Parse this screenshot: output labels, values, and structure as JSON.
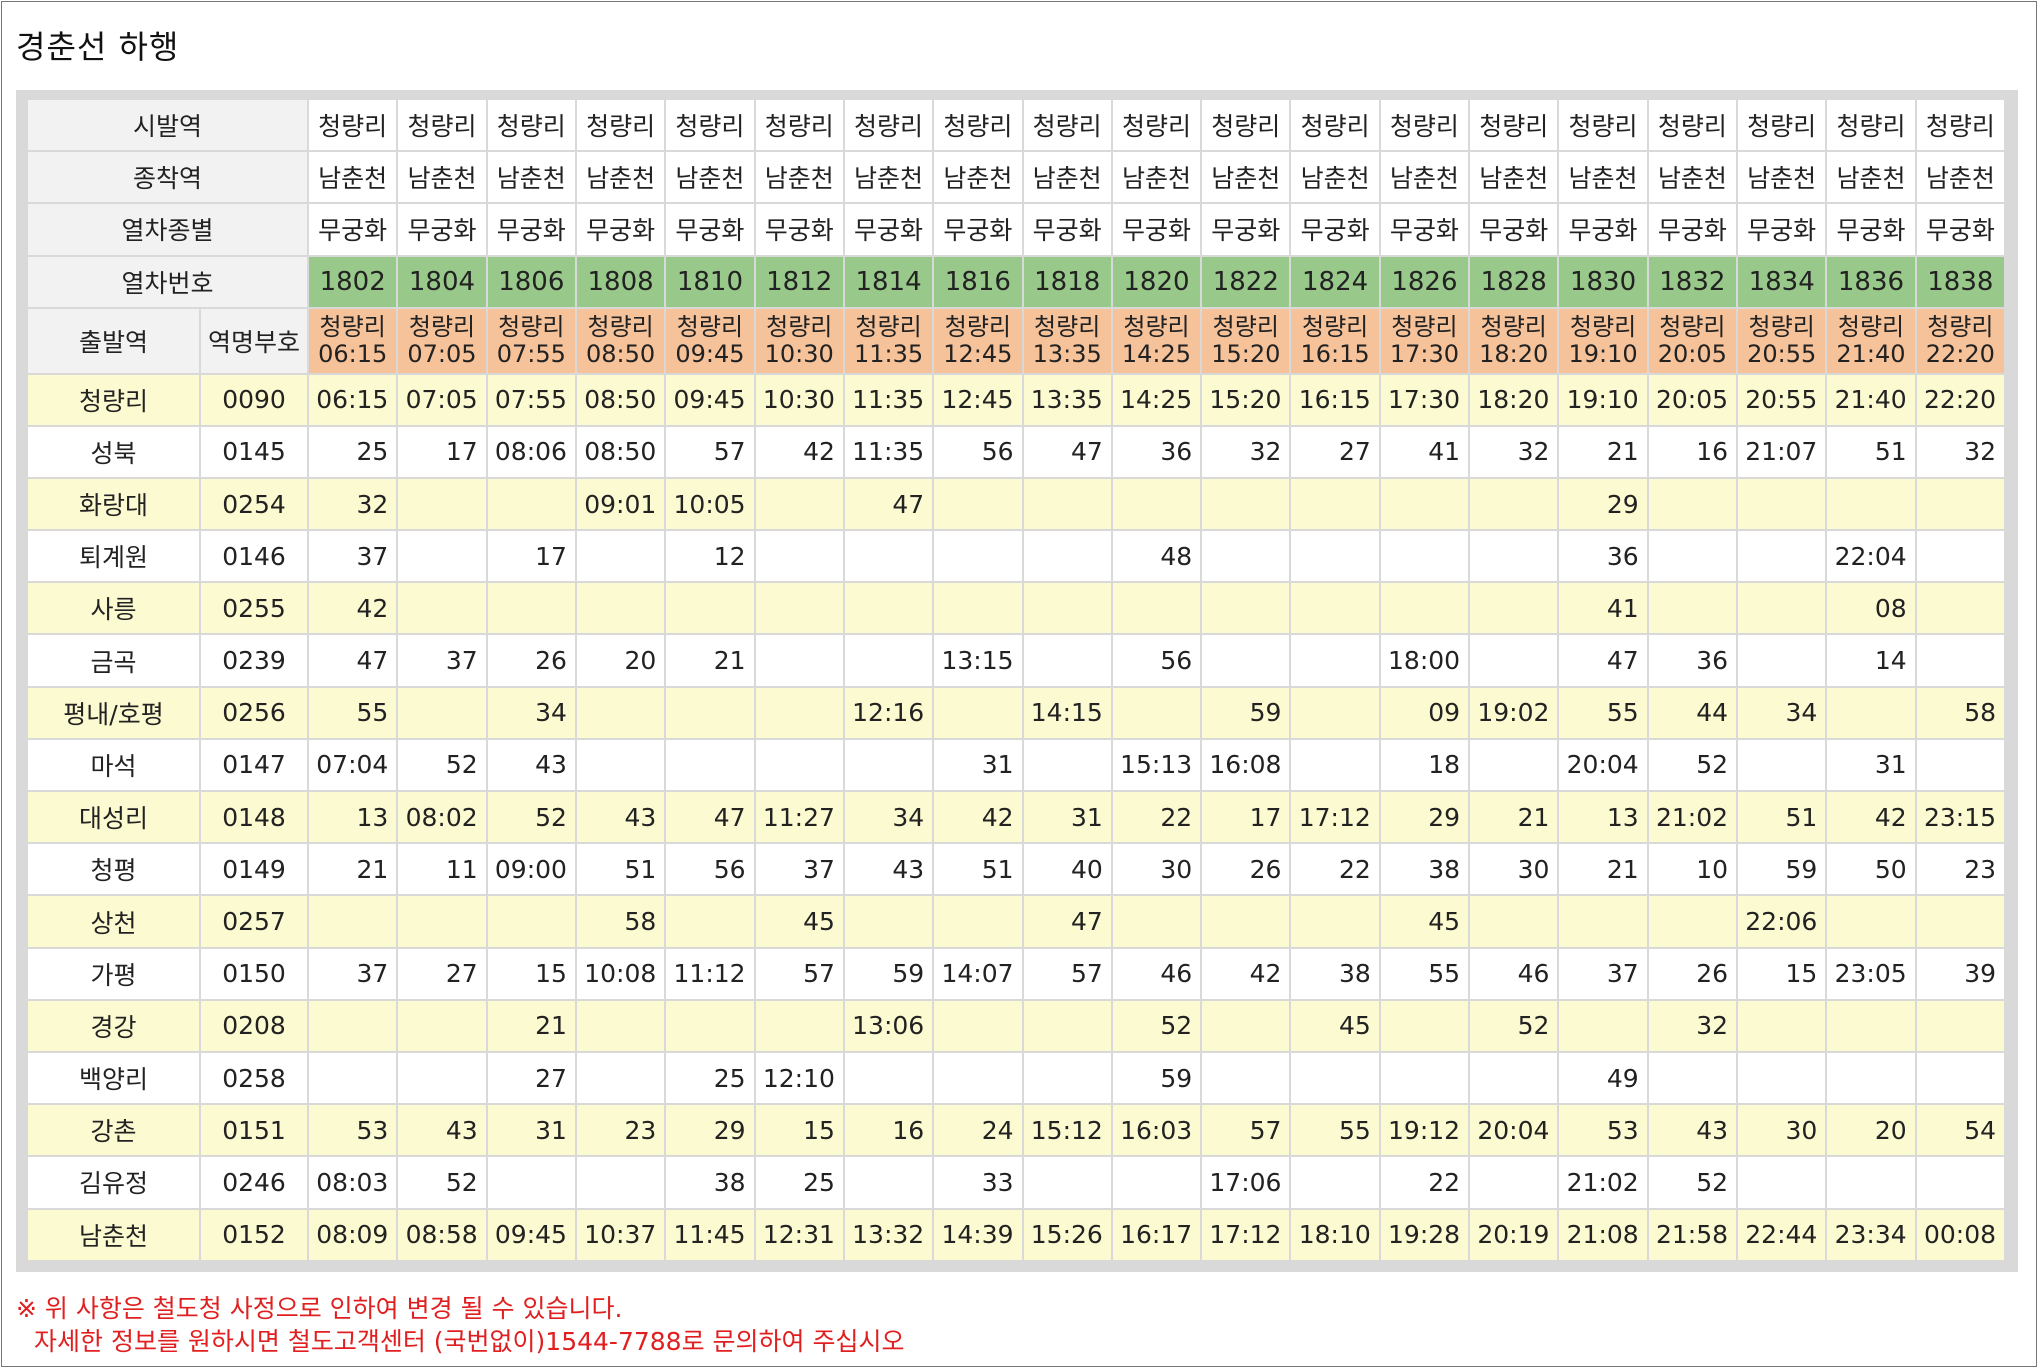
{
  "title": "경춘선 하행",
  "header": {
    "depart_label": "시발역",
    "dest_label": "종착역",
    "type_label": "열차종별",
    "number_label": "열차번호",
    "origin_label": "출발역",
    "code_label": "역명부호"
  },
  "trains": [
    {
      "depart": "청량리",
      "dest": "남춘천",
      "type": "무궁화",
      "number": "1802",
      "origin_station": "청량리",
      "origin_time": "06:15"
    },
    {
      "depart": "청량리",
      "dest": "남춘천",
      "type": "무궁화",
      "number": "1804",
      "origin_station": "청량리",
      "origin_time": "07:05"
    },
    {
      "depart": "청량리",
      "dest": "남춘천",
      "type": "무궁화",
      "number": "1806",
      "origin_station": "청량리",
      "origin_time": "07:55"
    },
    {
      "depart": "청량리",
      "dest": "남춘천",
      "type": "무궁화",
      "number": "1808",
      "origin_station": "청량리",
      "origin_time": "08:50"
    },
    {
      "depart": "청량리",
      "dest": "남춘천",
      "type": "무궁화",
      "number": "1810",
      "origin_station": "청량리",
      "origin_time": "09:45"
    },
    {
      "depart": "청량리",
      "dest": "남춘천",
      "type": "무궁화",
      "number": "1812",
      "origin_station": "청량리",
      "origin_time": "10:30"
    },
    {
      "depart": "청량리",
      "dest": "남춘천",
      "type": "무궁화",
      "number": "1814",
      "origin_station": "청량리",
      "origin_time": "11:35"
    },
    {
      "depart": "청량리",
      "dest": "남춘천",
      "type": "무궁화",
      "number": "1816",
      "origin_station": "청량리",
      "origin_time": "12:45"
    },
    {
      "depart": "청량리",
      "dest": "남춘천",
      "type": "무궁화",
      "number": "1818",
      "origin_station": "청량리",
      "origin_time": "13:35"
    },
    {
      "depart": "청량리",
      "dest": "남춘천",
      "type": "무궁화",
      "number": "1820",
      "origin_station": "청량리",
      "origin_time": "14:25"
    },
    {
      "depart": "청량리",
      "dest": "남춘천",
      "type": "무궁화",
      "number": "1822",
      "origin_station": "청량리",
      "origin_time": "15:20"
    },
    {
      "depart": "청량리",
      "dest": "남춘천",
      "type": "무궁화",
      "number": "1824",
      "origin_station": "청량리",
      "origin_time": "16:15"
    },
    {
      "depart": "청량리",
      "dest": "남춘천",
      "type": "무궁화",
      "number": "1826",
      "origin_station": "청량리",
      "origin_time": "17:30"
    },
    {
      "depart": "청량리",
      "dest": "남춘천",
      "type": "무궁화",
      "number": "1828",
      "origin_station": "청량리",
      "origin_time": "18:20"
    },
    {
      "depart": "청량리",
      "dest": "남춘천",
      "type": "무궁화",
      "number": "1830",
      "origin_station": "청량리",
      "origin_time": "19:10"
    },
    {
      "depart": "청량리",
      "dest": "남춘천",
      "type": "무궁화",
      "number": "1832",
      "origin_station": "청량리",
      "origin_time": "20:05"
    },
    {
      "depart": "청량리",
      "dest": "남춘천",
      "type": "무궁화",
      "number": "1834",
      "origin_station": "청량리",
      "origin_time": "20:55"
    },
    {
      "depart": "청량리",
      "dest": "남춘천",
      "type": "무궁화",
      "number": "1836",
      "origin_station": "청량리",
      "origin_time": "21:40"
    },
    {
      "depart": "청량리",
      "dest": "남춘천",
      "type": "무궁화",
      "number": "1838",
      "origin_station": "청량리",
      "origin_time": "22:20"
    }
  ],
  "stations": [
    {
      "name": "청량리",
      "code": "0090",
      "times": [
        "06:15",
        "07:05",
        "07:55",
        "08:50",
        "09:45",
        "10:30",
        "11:35",
        "12:45",
        "13:35",
        "14:25",
        "15:20",
        "16:15",
        "17:30",
        "18:20",
        "19:10",
        "20:05",
        "20:55",
        "21:40",
        "22:20"
      ]
    },
    {
      "name": "성북",
      "code": "0145",
      "times": [
        "25",
        "17",
        "08:06",
        "08:50",
        "57",
        "42",
        "11:35",
        "56",
        "47",
        "36",
        "32",
        "27",
        "41",
        "32",
        "21",
        "16",
        "21:07",
        "51",
        "32"
      ]
    },
    {
      "name": "화랑대",
      "code": "0254",
      "times": [
        "32",
        "",
        "",
        "09:01",
        "10:05",
        "",
        "47",
        "",
        "",
        "",
        "",
        "",
        "",
        "",
        "29",
        "",
        "",
        "",
        ""
      ]
    },
    {
      "name": "퇴계원",
      "code": "0146",
      "times": [
        "37",
        "",
        "17",
        "",
        "12",
        "",
        "",
        "",
        "",
        "48",
        "",
        "",
        "",
        "",
        "36",
        "",
        "",
        "22:04",
        ""
      ]
    },
    {
      "name": "사릉",
      "code": "0255",
      "times": [
        "42",
        "",
        "",
        "",
        "",
        "",
        "",
        "",
        "",
        "",
        "",
        "",
        "",
        "",
        "41",
        "",
        "",
        "08",
        ""
      ]
    },
    {
      "name": "금곡",
      "code": "0239",
      "times": [
        "47",
        "37",
        "26",
        "20",
        "21",
        "",
        "",
        "13:15",
        "",
        "56",
        "",
        "",
        "18:00",
        "",
        "47",
        "36",
        "",
        "14",
        ""
      ]
    },
    {
      "name": "평내/호평",
      "code": "0256",
      "times": [
        "55",
        "",
        "34",
        "",
        "",
        "",
        "12:16",
        "",
        "14:15",
        "",
        "59",
        "",
        "09",
        "19:02",
        "55",
        "44",
        "34",
        "",
        "58"
      ]
    },
    {
      "name": "마석",
      "code": "0147",
      "times": [
        "07:04",
        "52",
        "43",
        "",
        "",
        "",
        "",
        "31",
        "",
        "15:13",
        "16:08",
        "",
        "18",
        "",
        "20:04",
        "52",
        "",
        "31",
        ""
      ]
    },
    {
      "name": "대성리",
      "code": "0148",
      "times": [
        "13",
        "08:02",
        "52",
        "43",
        "47",
        "11:27",
        "34",
        "42",
        "31",
        "22",
        "17",
        "17:12",
        "29",
        "21",
        "13",
        "21:02",
        "51",
        "42",
        "23:15"
      ]
    },
    {
      "name": "청평",
      "code": "0149",
      "times": [
        "21",
        "11",
        "09:00",
        "51",
        "56",
        "37",
        "43",
        "51",
        "40",
        "30",
        "26",
        "22",
        "38",
        "30",
        "21",
        "10",
        "59",
        "50",
        "23"
      ]
    },
    {
      "name": "상천",
      "code": "0257",
      "times": [
        "",
        "",
        "",
        "58",
        "",
        "45",
        "",
        "",
        "47",
        "",
        "",
        "",
        "45",
        "",
        "",
        "",
        "22:06",
        "",
        ""
      ]
    },
    {
      "name": "가평",
      "code": "0150",
      "times": [
        "37",
        "27",
        "15",
        "10:08",
        "11:12",
        "57",
        "59",
        "14:07",
        "57",
        "46",
        "42",
        "38",
        "55",
        "46",
        "37",
        "26",
        "15",
        "23:05",
        "39"
      ]
    },
    {
      "name": "경강",
      "code": "0208",
      "times": [
        "",
        "",
        "21",
        "",
        "",
        "",
        "13:06",
        "",
        "",
        "52",
        "",
        "45",
        "",
        "52",
        "",
        "32",
        "",
        "",
        ""
      ]
    },
    {
      "name": "백양리",
      "code": "0258",
      "times": [
        "",
        "",
        "27",
        "",
        "25",
        "12:10",
        "",
        "",
        "",
        "59",
        "",
        "",
        "",
        "",
        "49",
        "",
        "",
        "",
        ""
      ]
    },
    {
      "name": "강촌",
      "code": "0151",
      "times": [
        "53",
        "43",
        "31",
        "23",
        "29",
        "15",
        "16",
        "24",
        "15:12",
        "16:03",
        "57",
        "55",
        "19:12",
        "20:04",
        "53",
        "43",
        "30",
        "20",
        "54"
      ]
    },
    {
      "name": "김유정",
      "code": "0246",
      "times": [
        "08:03",
        "52",
        "",
        "",
        "38",
        "25",
        "",
        "33",
        "",
        "",
        "17:06",
        "",
        "22",
        "",
        "21:02",
        "52",
        "",
        "",
        ""
      ]
    },
    {
      "name": "남춘천",
      "code": "0152",
      "times": [
        "08:09",
        "08:58",
        "09:45",
        "10:37",
        "11:45",
        "12:31",
        "13:32",
        "14:39",
        "15:26",
        "16:17",
        "17:12",
        "18:10",
        "19:28",
        "20:19",
        "21:08",
        "21:58",
        "22:44",
        "23:34",
        "00:08"
      ]
    }
  ],
  "notice": {
    "line1": "※ 위 사항은 철도청 사정으로 인하여 변경 될 수 있습니다.",
    "line2": "자세한 정보를 원하시면 철도고객센터 (국번없이)1544-7788로 문의하여 주십시오"
  }
}
